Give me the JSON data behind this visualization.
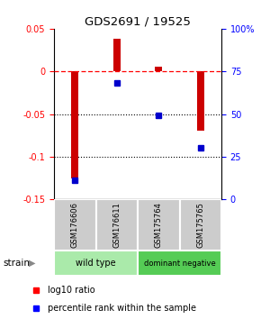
{
  "title": "GDS2691 / 19525",
  "samples": [
    "GSM176606",
    "GSM176611",
    "GSM175764",
    "GSM175765"
  ],
  "log10_ratio": [
    -0.125,
    0.038,
    0.005,
    -0.07
  ],
  "percentile_rank": [
    11,
    68,
    49,
    30
  ],
  "groups": [
    {
      "label": "wild type",
      "samples": [
        0,
        1
      ],
      "color": "#aaeaaa"
    },
    {
      "label": "dominant negative",
      "samples": [
        2,
        3
      ],
      "color": "#55cc55"
    }
  ],
  "bar_color": "#cc0000",
  "dot_color": "#0000cc",
  "ylim_left": [
    -0.15,
    0.05
  ],
  "ylim_right": [
    0,
    100
  ],
  "yticks_left": [
    -0.15,
    -0.1,
    -0.05,
    0.0,
    0.05
  ],
  "ytick_labels_left": [
    "-0.15",
    "-0.1",
    "-0.05",
    "0",
    "0.05"
  ],
  "yticks_right": [
    0,
    25,
    50,
    75,
    100
  ],
  "ytick_labels_right": [
    "0",
    "25",
    "50",
    "75",
    "100%"
  ],
  "dotted_lines": [
    -0.05,
    -0.1
  ],
  "bar_width": 0.18,
  "sample_box_color": "#cccccc",
  "strain_label": "strain"
}
